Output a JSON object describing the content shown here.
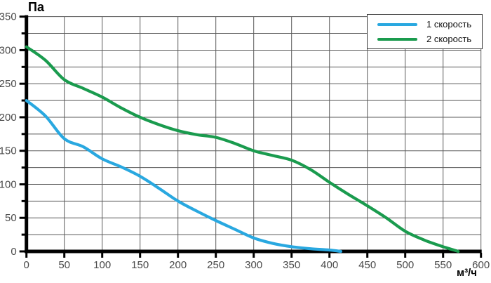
{
  "chart_data": {
    "type": "line",
    "title": "",
    "ylabel": "Па",
    "xlabel": "м³/ч",
    "xlim": [
      0,
      600
    ],
    "ylim": [
      0,
      350
    ],
    "x_ticks": [
      0,
      50,
      100,
      150,
      200,
      250,
      300,
      350,
      400,
      450,
      500,
      550,
      600
    ],
    "y_tick_labels": [
      0,
      50,
      100,
      150,
      200,
      250,
      300,
      350
    ],
    "grid": {
      "x_step": 50,
      "y_step": 25,
      "on": true
    },
    "legend_position": "top-right",
    "series": [
      {
        "name": "1 скорость",
        "color": "#29a8e0",
        "points": [
          [
            0,
            225
          ],
          [
            25,
            202
          ],
          [
            50,
            168
          ],
          [
            75,
            156
          ],
          [
            100,
            138
          ],
          [
            125,
            126
          ],
          [
            150,
            112
          ],
          [
            175,
            94
          ],
          [
            200,
            75
          ],
          [
            225,
            60
          ],
          [
            250,
            46
          ],
          [
            275,
            33
          ],
          [
            300,
            20
          ],
          [
            325,
            12
          ],
          [
            350,
            7
          ],
          [
            375,
            4
          ],
          [
            400,
            2
          ],
          [
            415,
            0
          ]
        ]
      },
      {
        "name": "2 скорость",
        "color": "#1a9b4e",
        "points": [
          [
            0,
            305
          ],
          [
            25,
            285
          ],
          [
            50,
            256
          ],
          [
            75,
            243
          ],
          [
            100,
            230
          ],
          [
            125,
            214
          ],
          [
            150,
            200
          ],
          [
            175,
            189
          ],
          [
            200,
            180
          ],
          [
            225,
            174
          ],
          [
            250,
            170
          ],
          [
            275,
            161
          ],
          [
            300,
            150
          ],
          [
            325,
            143
          ],
          [
            350,
            136
          ],
          [
            375,
            122
          ],
          [
            400,
            103
          ],
          [
            425,
            85
          ],
          [
            450,
            68
          ],
          [
            475,
            50
          ],
          [
            500,
            30
          ],
          [
            525,
            17
          ],
          [
            550,
            7
          ],
          [
            570,
            0
          ]
        ]
      }
    ]
  },
  "style": {
    "grid_color": "#5a5a5a",
    "axis_color": "#000000",
    "tick_label_color": "#4a4a4a"
  }
}
